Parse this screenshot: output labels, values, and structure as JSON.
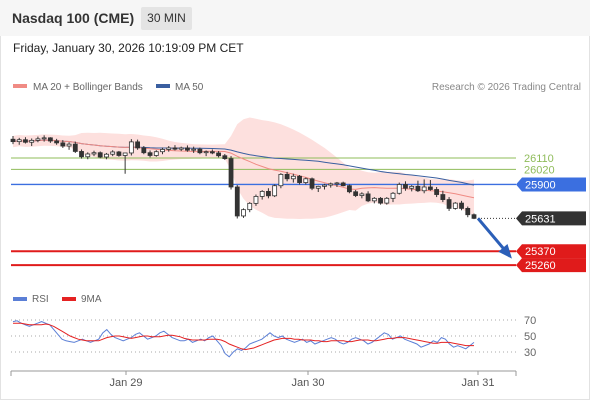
{
  "header": {
    "title": "Nasdaq 100 (CME)",
    "timeframe": "30 MIN",
    "datetime": "Friday, January 30, 2026 10:19:09 PM CET"
  },
  "legend": {
    "items": [
      {
        "label": "MA 20 + Bollinger Bands",
        "color": "#f08b84"
      },
      {
        "label": "MA 50",
        "color": "#3a5fa0"
      }
    ],
    "credit": "Research © 2026 Trading Central"
  },
  "rsi_legend": {
    "items": [
      {
        "label": "RSI",
        "color": "#5b7fd6"
      },
      {
        "label": "9MA",
        "color": "#e52222"
      }
    ]
  },
  "chart_data": [
    {
      "type": "candlestick",
      "title": "Nasdaq 100 (CME) — 30 MIN",
      "x_ticks": [
        "Jan 29",
        "Jan 30",
        "Jan 31"
      ],
      "price_range": [
        25200,
        26400
      ],
      "ohlc": [
        [
          26259,
          26285,
          26220,
          26240
        ],
        [
          26240,
          26270,
          26215,
          26255
        ],
        [
          26255,
          26275,
          26225,
          26235
        ],
        [
          26235,
          26265,
          26205,
          26250
        ],
        [
          26250,
          26280,
          26235,
          26262
        ],
        [
          26262,
          26290,
          26240,
          26270
        ],
        [
          26270,
          26275,
          26230,
          26245
        ],
        [
          26245,
          26262,
          26215,
          26230
        ],
        [
          26230,
          26252,
          26190,
          26205
        ],
        [
          26205,
          26235,
          26175,
          26220
        ],
        [
          26220,
          26240,
          26150,
          26162
        ],
        [
          26162,
          26178,
          26105,
          26120
        ],
        [
          26120,
          26155,
          26100,
          26142
        ],
        [
          26142,
          26168,
          26125,
          26152
        ],
        [
          26152,
          26162,
          26108,
          26118
        ],
        [
          26118,
          26150,
          26100,
          26140
        ],
        [
          26140,
          26172,
          26125,
          26158
        ],
        [
          26158,
          26166,
          26120,
          26130
        ],
        [
          26130,
          26150,
          25985,
          26150
        ],
        [
          26150,
          26260,
          26130,
          26238
        ],
        [
          26238,
          26256,
          26175,
          26190
        ],
        [
          26190,
          26205,
          26140,
          26152
        ],
        [
          26152,
          26170,
          26115,
          26130
        ],
        [
          26130,
          26172,
          26120,
          26160
        ],
        [
          26160,
          26192,
          26140,
          26178
        ],
        [
          26178,
          26205,
          26160,
          26190
        ],
        [
          26190,
          26212,
          26170,
          26180
        ],
        [
          26180,
          26200,
          26165,
          26190
        ],
        [
          26190,
          26210,
          26160,
          26172
        ],
        [
          26172,
          26200,
          26150,
          26180
        ],
        [
          26180,
          26192,
          26140,
          26152
        ],
        [
          26152,
          26170,
          26125,
          26160
        ],
        [
          26160,
          26178,
          26140,
          26150
        ],
        [
          26150,
          26165,
          26115,
          26128
        ],
        [
          26128,
          26142,
          26095,
          26105
        ],
        [
          26105,
          26125,
          25860,
          25880
        ],
        [
          25880,
          25895,
          25630,
          25650
        ],
        [
          25650,
          25710,
          25635,
          25700
        ],
        [
          25700,
          25760,
          25680,
          25750
        ],
        [
          25750,
          25820,
          25730,
          25805
        ],
        [
          25805,
          25855,
          25780,
          25845
        ],
        [
          25845,
          25870,
          25790,
          25810
        ],
        [
          25810,
          25900,
          25800,
          25890
        ],
        [
          25890,
          25990,
          25870,
          25980
        ],
        [
          25980,
          26000,
          25925,
          25945
        ],
        [
          25945,
          25985,
          25915,
          25965
        ],
        [
          25965,
          25975,
          25900,
          25915
        ],
        [
          25915,
          25955,
          25900,
          25945
        ],
        [
          25945,
          25955,
          25855,
          25870
        ],
        [
          25870,
          25890,
          25840,
          25885
        ],
        [
          25885,
          25905,
          25860,
          25895
        ],
        [
          25895,
          25915,
          25875,
          25905
        ],
        [
          25905,
          25920,
          25880,
          25912
        ],
        [
          25912,
          25922,
          25885,
          25890
        ],
        [
          25890,
          25900,
          25830,
          25842
        ],
        [
          25842,
          25856,
          25800,
          25812
        ],
        [
          25812,
          25838,
          25790,
          25825
        ],
        [
          25825,
          25846,
          25760,
          25770
        ],
        [
          25770,
          25800,
          25750,
          25790
        ],
        [
          25790,
          25800,
          25740,
          25752
        ],
        [
          25752,
          25800,
          25740,
          25790
        ],
        [
          25790,
          25840,
          25760,
          25830
        ],
        [
          25830,
          25915,
          25820,
          25900
        ],
        [
          25900,
          25925,
          25850,
          25870
        ],
        [
          25870,
          25895,
          25845,
          25885
        ],
        [
          25885,
          25930,
          25840,
          25850
        ],
        [
          25850,
          25940,
          25830,
          25880
        ],
        [
          25880,
          25935,
          25850,
          25860
        ],
        [
          25860,
          25880,
          25800,
          25820
        ],
        [
          25820,
          25850,
          25760,
          25780
        ],
        [
          25780,
          25800,
          25690,
          25710
        ],
        [
          25710,
          25760,
          25700,
          25752
        ],
        [
          25752,
          25770,
          25695,
          25710
        ],
        [
          25710,
          25725,
          25640,
          25660
        ],
        [
          25660,
          25670,
          25625,
          25631
        ]
      ],
      "ma20_color": "#f08b84",
      "ma50_color": "#3a5fa0",
      "levels": [
        {
          "value": 26110,
          "label": "26110",
          "kind": "resistance",
          "color": "#8fbc5a"
        },
        {
          "value": 26020,
          "label": "26020",
          "kind": "resistance",
          "color": "#8fbc5a"
        },
        {
          "value": 25900,
          "label": "25900",
          "kind": "pivot",
          "color": "#3b6fe0"
        },
        {
          "value": 25370,
          "label": "25370",
          "kind": "support",
          "color": "#e01b1b"
        },
        {
          "value": 25260,
          "label": "25260",
          "kind": "support",
          "color": "#e01b1b"
        }
      ],
      "last_price": {
        "value": 25631,
        "label": "25631"
      },
      "forecast_arrow": {
        "from": 25631,
        "to": 25330,
        "color": "#2b5fb8"
      },
      "grid": false
    },
    {
      "type": "line",
      "title": "RSI",
      "y_ticks": [
        70,
        50,
        30
      ],
      "ylim": [
        20,
        80
      ],
      "series": [
        {
          "name": "RSI",
          "color": "#5b7fd6",
          "values": [
            68,
            69,
            66,
            64,
            62,
            64,
            66,
            68,
            66,
            64,
            58,
            52,
            46,
            44,
            43,
            42,
            44,
            46,
            44,
            42,
            44,
            46,
            54,
            58,
            52,
            48,
            46,
            44,
            46,
            48,
            52,
            54,
            50,
            46,
            48,
            50,
            54,
            56,
            52,
            48,
            46,
            44,
            44,
            46,
            42,
            44,
            46,
            44,
            48,
            50,
            44,
            38,
            28,
            24,
            30,
            34,
            32,
            35,
            40,
            42,
            44,
            46,
            50,
            54,
            50,
            48,
            50,
            46,
            44,
            42,
            44,
            46,
            42,
            44,
            40,
            42,
            44,
            46,
            48,
            46,
            42,
            40,
            42,
            46,
            48,
            46,
            44,
            40,
            42,
            46,
            50,
            54,
            52,
            46,
            48,
            50,
            46,
            44,
            42,
            40,
            36,
            38,
            40,
            44,
            42,
            48,
            46,
            40,
            36,
            38,
            36,
            34,
            38,
            42
          ]
        },
        {
          "name": "9MA",
          "color": "#e52222",
          "values": [
            66,
            66,
            66,
            65,
            64,
            64,
            64,
            64,
            65,
            64,
            62,
            59,
            56,
            53,
            50,
            48,
            46,
            45,
            44,
            44,
            44,
            44,
            46,
            48,
            49,
            50,
            50,
            49,
            48,
            47,
            48,
            49,
            50,
            50,
            49,
            49,
            49,
            50,
            51,
            51,
            50,
            49,
            47,
            46,
            45,
            45,
            45,
            45,
            46,
            46,
            46,
            45,
            43,
            40,
            38,
            36,
            34,
            33,
            34,
            35,
            37,
            39,
            41,
            43,
            45,
            46,
            47,
            47,
            47,
            46,
            46,
            45,
            45,
            45,
            44,
            44,
            43,
            43,
            44,
            44,
            44,
            44,
            43,
            43,
            44,
            45,
            45,
            45,
            44,
            44,
            45,
            46,
            47,
            47,
            48,
            48,
            48,
            47,
            46,
            45,
            44,
            43,
            42,
            41,
            41,
            42,
            42,
            42,
            41,
            40,
            39,
            38,
            38,
            38
          ]
        }
      ],
      "grid": false
    }
  ]
}
